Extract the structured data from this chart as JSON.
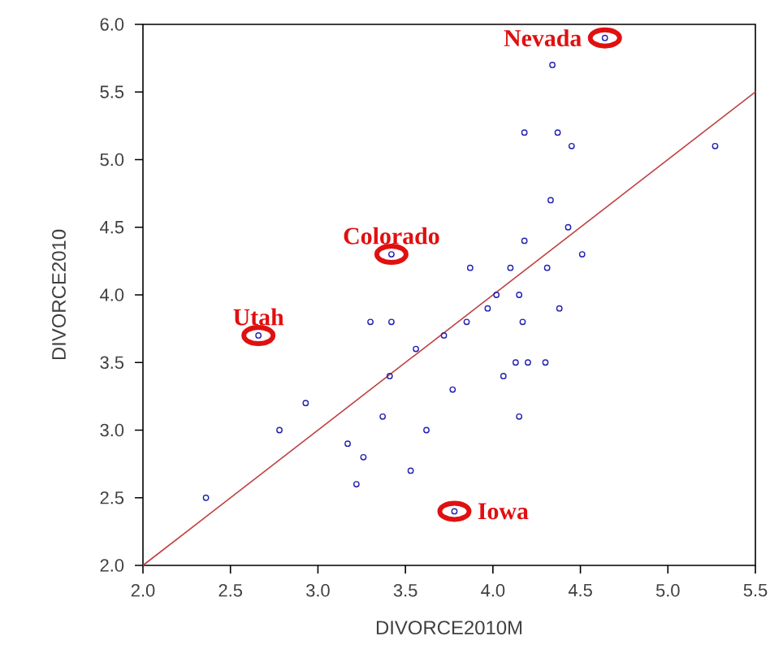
{
  "chart_data": {
    "type": "scatter",
    "xlabel": "DIVORCE2010M",
    "ylabel": "DIVORCE2010",
    "xlim": [
      2.0,
      5.5
    ],
    "ylim": [
      2.0,
      6.0
    ],
    "xticks": [
      {
        "value": 2.0,
        "label": "2.0"
      },
      {
        "value": 2.5,
        "label": "2.5"
      },
      {
        "value": 3.0,
        "label": "3.0"
      },
      {
        "value": 3.5,
        "label": "3.5"
      },
      {
        "value": 4.0,
        "label": "4.0"
      },
      {
        "value": 4.5,
        "label": "4.5"
      },
      {
        "value": 5.0,
        "label": "5.0"
      },
      {
        "value": 5.5,
        "label": "5.5"
      }
    ],
    "yticks": [
      {
        "value": 2.0,
        "label": "2.0"
      },
      {
        "value": 2.5,
        "label": "2.5"
      },
      {
        "value": 3.0,
        "label": "3.0"
      },
      {
        "value": 3.5,
        "label": "3.5"
      },
      {
        "value": 4.0,
        "label": "4.0"
      },
      {
        "value": 4.5,
        "label": "4.5"
      },
      {
        "value": 5.0,
        "label": "5.0"
      },
      {
        "value": 5.5,
        "label": "5.5"
      },
      {
        "value": 6.0,
        "label": "6.0"
      }
    ],
    "grid": false,
    "series": [
      {
        "marker": "circle",
        "color": "#2020b0",
        "x": [
          4.64,
          4.34,
          4.18,
          4.37,
          4.45,
          5.27,
          4.33,
          4.43,
          4.18,
          4.51,
          3.87,
          4.1,
          4.31,
          4.02,
          4.15,
          4.38,
          3.97,
          4.17,
          3.42,
          2.66,
          3.3,
          3.42,
          3.56,
          3.72,
          3.41,
          3.77,
          2.93,
          2.78,
          3.37,
          3.62,
          3.17,
          3.26,
          3.53,
          3.22,
          2.36,
          3.78,
          4.13,
          4.2,
          4.3,
          4.06,
          4.15,
          3.85
        ],
        "values": [
          5.9,
          5.7,
          5.2,
          5.2,
          5.1,
          5.1,
          4.7,
          4.5,
          4.4,
          4.3,
          4.2,
          4.2,
          4.2,
          4.0,
          4.0,
          3.9,
          3.9,
          3.8,
          4.3,
          3.7,
          3.8,
          3.8,
          3.6,
          3.7,
          3.4,
          3.3,
          3.2,
          3.0,
          3.1,
          3.0,
          2.9,
          2.8,
          2.7,
          2.6,
          2.5,
          2.4,
          3.5,
          3.5,
          3.5,
          3.4,
          3.1,
          3.8
        ]
      },
      {
        "type": "line",
        "color": "#c04040",
        "x": [
          2.0,
          5.5
        ],
        "values": [
          2.0,
          5.5
        ]
      }
    ],
    "annotations": [
      {
        "text": "Nevada",
        "x": 4.64,
        "y": 5.9
      },
      {
        "text": "Colorado",
        "x": 3.42,
        "y": 4.3
      },
      {
        "text": "Utah",
        "x": 2.66,
        "y": 3.7
      },
      {
        "text": "Iowa",
        "x": 3.78,
        "y": 2.4
      }
    ]
  }
}
